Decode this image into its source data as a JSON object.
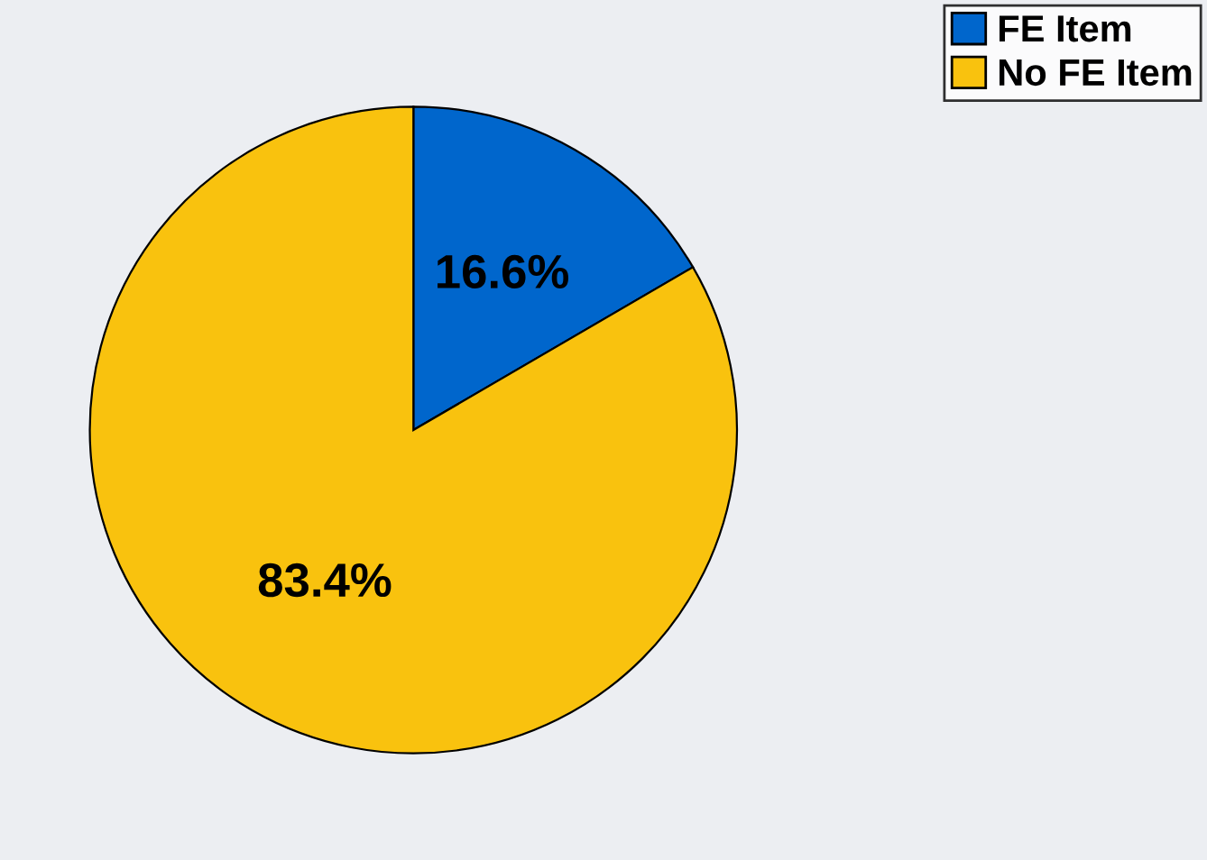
{
  "chart_data": {
    "type": "pie",
    "categories": [
      "FE Item",
      "No FE Item"
    ],
    "values": [
      16.6,
      83.4
    ],
    "colors": [
      "#0066cc",
      "#f9c20e"
    ],
    "value_labels": [
      "16.6%",
      "83.4%"
    ],
    "legend": "top right"
  }
}
